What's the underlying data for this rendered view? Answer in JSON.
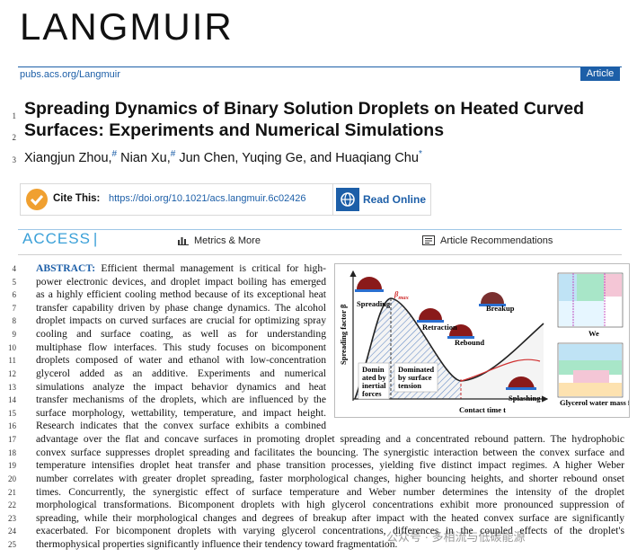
{
  "header": {
    "journal": "LANGMUIR",
    "url": "pubs.acs.org/Langmuir",
    "article_type": "Article"
  },
  "title_lines": [
    {
      "n": 1,
      "text": "Spreading Dynamics of Binary Solution Droplets on Heated Curved"
    },
    {
      "n": 2,
      "text": "Surfaces: Experiments and Numerical Simulations"
    }
  ],
  "authors": {
    "n": 3,
    "parts": [
      {
        "text": "Xiangjun Zhou,",
        "sup": "#"
      },
      {
        "text": "Nian Xu,",
        "sup": "#"
      },
      {
        "text": "Jun Chen, Yuqing Ge, and Huaqiang Chu",
        "sup": "*"
      }
    ]
  },
  "cite": {
    "label": "Cite This:",
    "doi": "https://doi.org/10.1021/acs.langmuir.6c02426"
  },
  "read_online": "Read Online",
  "access": {
    "label": "ACCESS",
    "metrics": "Metrics & More",
    "recommendations": "Article Recommendations"
  },
  "abstract": {
    "label": "ABSTRACT:",
    "lines": [
      {
        "n": 4,
        "text": "Efficient thermal management is critical for high-"
      },
      {
        "n": 5,
        "text": "power electronic devices, and droplet impact boiling has emerged"
      },
      {
        "n": 6,
        "text": "as a highly efficient cooling method because of its exceptional heat"
      },
      {
        "n": 7,
        "text": "transfer capability driven by phase change dynamics. The alcohol"
      },
      {
        "n": 8,
        "text": "droplet impacts on curved surfaces are crucial for optimizing spray"
      },
      {
        "n": 9,
        "text": "cooling and surface coating, as well as for understanding"
      },
      {
        "n": 10,
        "text": "multiphase flow interfaces. This study focuses on bicomponent"
      },
      {
        "n": 11,
        "text": "droplets composed of water and ethanol with low-concentration"
      },
      {
        "n": 12,
        "text": "glycerol added as an additive. Experiments and numerical"
      },
      {
        "n": 13,
        "text": "simulations analyze the impact behavior dynamics and heat"
      },
      {
        "n": 14,
        "text": "transfer mechanisms of the droplets, which are influenced by the"
      },
      {
        "n": 15,
        "text": "surface morphology, wettability, temperature, and impact height."
      },
      {
        "n": 16,
        "text": "Research indicates that the convex surface exhibits a combined"
      },
      {
        "n": 17,
        "text": "advantage over the flat and concave surfaces in promoting droplet spreading and a concentrated rebound pattern. The hydrophobic"
      },
      {
        "n": 18,
        "text": "convex surface suppresses droplet spreading and facilitates the bouncing. The synergistic interaction between the convex surface and"
      },
      {
        "n": 19,
        "text": "temperature intensifies droplet heat transfer and phase transition processes, yielding five distinct impact regimes. A higher Weber"
      },
      {
        "n": 20,
        "text": "number correlates with greater droplet spreading, faster morphological changes, higher bouncing heights, and shorter rebound onset"
      },
      {
        "n": 21,
        "text": "times. Concurrently, the synergistic effect of surface temperature and Weber number determines the intensity of the droplet"
      },
      {
        "n": 22,
        "text": "morphological transformations. Bicomponent droplets with high glycerol concentrations exhibit more pronounced suppression of"
      },
      {
        "n": 23,
        "text": "spreading, while their morphological changes and degrees of breakup after impact with the heated convex surface are significantly"
      },
      {
        "n": 24,
        "text": "exacerbated. For bicomponent droplets with varying glycerol concentrations, differences in the coupled effects of the droplet's"
      },
      {
        "n": 25,
        "text": "thermophysical properties significantly influence their tendency toward fragmentation."
      }
    ]
  },
  "toc_graphic": {
    "y_axis": "Spreading factor β",
    "x_axis": "Contact time t",
    "beta": "β",
    "beta_sub": "max",
    "stages": [
      "Spreading",
      "Retraction",
      "Breakup",
      "Rebound",
      "Splashing"
    ],
    "inertial": [
      "Domin",
      "ated by",
      "inertial",
      "forces"
    ],
    "tension": [
      "Dominated",
      "by surface",
      "tension"
    ],
    "inset_x_top": "We",
    "inset_x_bottom": "Glycerol water mass fraction"
  },
  "watermark": "公众号 · 多相流与低碳能源"
}
